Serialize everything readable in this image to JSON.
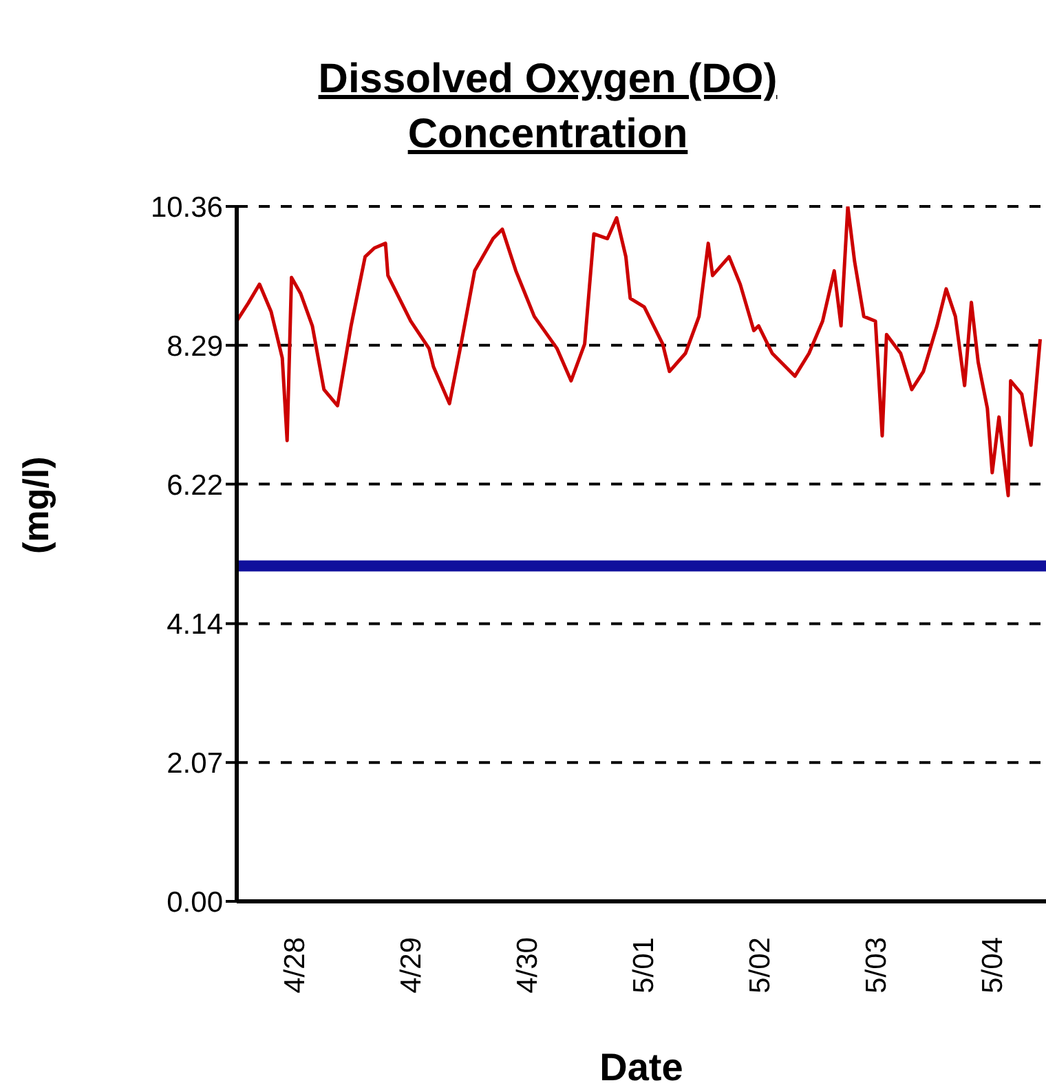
{
  "chart_data": {
    "type": "line",
    "title": "Dissolved Oxygen (DO) Concentration",
    "xlabel": "Date",
    "ylabel": "(mg/l)",
    "x": [
      "--04-27T12:00",
      "--04-27T14:24",
      "--04-27T16:42",
      "--04-27T19:06",
      "--04-27T21:24",
      "--04-27T22:24",
      "--04-27T23:18",
      "--04-28T01:12",
      "--04-28T03:36",
      "--04-28T06:00",
      "--04-28T08:48",
      "--04-28T11:36",
      "--04-28T14:30",
      "--04-28T16:24",
      "--04-28T18:42",
      "--04-28T19:12",
      "--04-28T23:54",
      "--04-29T03:42",
      "--04-29T04:36",
      "--04-29T07:54",
      "--04-29T10:18",
      "--04-29T13:06",
      "--04-29T16:54",
      "--04-29T18:48",
      "--04-29T21:36",
      "--04-30T01:24",
      "--04-30T06:06",
      "--04-30T09:00",
      "--04-30T11:48",
      "--04-30T13:42",
      "--04-30T16:30",
      "--04-30T18:24",
      "--04-30T20:18",
      "--04-30T21:12",
      "--05-01T00:06",
      "--05-01T03:54",
      "--05-01T05:18",
      "--05-01T08:36",
      "--05-01T11:24",
      "--05-01T13:18",
      "--05-01T14:12",
      "--05-01T17:36",
      "--05-01T19:54",
      "--05-01T22:42",
      "--05-01T23:42",
      "--05-02T02:30",
      "--05-02T07:12",
      "--05-02T10:06",
      "--05-02T12:54",
      "--05-02T15:18",
      "--05-02T16:42",
      "--05-02T18:06",
      "--05-02T19:30",
      "--05-02T21:24",
      "--05-02T23:48",
      "--05-03T01:12",
      "--05-03T02:06",
      "--05-03T05:00",
      "--05-03T07:18",
      "--05-03T09:42",
      "--05-03T12:30",
      "--05-03T14:24",
      "--05-03T16:18",
      "--05-03T18:12",
      "--05-03T19:36",
      "--05-03T21:00",
      "--05-03T22:54",
      "--05-03T23:54",
      "--05-04T01:18",
      "--05-04T03:12",
      "--05-04T03:42",
      "--05-04T06:00",
      "--05-04T07:54",
      "--05-04T09:48"
    ],
    "series": [
      {
        "color": "#cc0000",
        "values": [
          8.65,
          8.92,
          9.2,
          8.79,
          8.1,
          6.87,
          9.3,
          9.06,
          8.58,
          7.63,
          7.39,
          8.58,
          9.61,
          9.74,
          9.81,
          9.33,
          8.65,
          8.24,
          7.97,
          7.42,
          8.31,
          9.4,
          9.88,
          10.02,
          9.4,
          8.72,
          8.24,
          7.76,
          8.31,
          9.95,
          9.88,
          10.19,
          9.61,
          8.99,
          8.86,
          8.31,
          7.9,
          8.17,
          8.72,
          9.81,
          9.33,
          9.61,
          9.2,
          8.51,
          8.58,
          8.17,
          7.83,
          8.17,
          8.65,
          9.4,
          8.58,
          10.36,
          9.54,
          8.72,
          8.65,
          6.94,
          8.45,
          8.17,
          7.63,
          7.9,
          8.58,
          9.13,
          8.72,
          7.69,
          8.93,
          8.04,
          7.35,
          6.39,
          7.22,
          6.05,
          7.76,
          7.56,
          6.8,
          8.38
        ]
      }
    ],
    "xlim": [
      "--04-27T12:00",
      "--05-04T11:00"
    ],
    "xticks": [
      {
        "value": "--04-28",
        "label": "4/28"
      },
      {
        "value": "--04-29",
        "label": "4/29"
      },
      {
        "value": "--04-30",
        "label": "4/30"
      },
      {
        "value": "--05-01",
        "label": "5/01"
      },
      {
        "value": "--05-02",
        "label": "5/02"
      },
      {
        "value": "--05-03",
        "label": "5/03"
      },
      {
        "value": "--05-04",
        "label": "5/04"
      }
    ],
    "ylim": [
      0,
      10.36
    ],
    "yticks": [
      {
        "value": 0,
        "label": "0.00"
      },
      2.07,
      4.14,
      6.22,
      8.29,
      10.36
    ],
    "ref_lines": [
      {
        "axis": "y",
        "value": 5,
        "color": "#10109c"
      }
    ],
    "grid": "y",
    "legend": false,
    "marker": "none",
    "line_style": "solid"
  }
}
